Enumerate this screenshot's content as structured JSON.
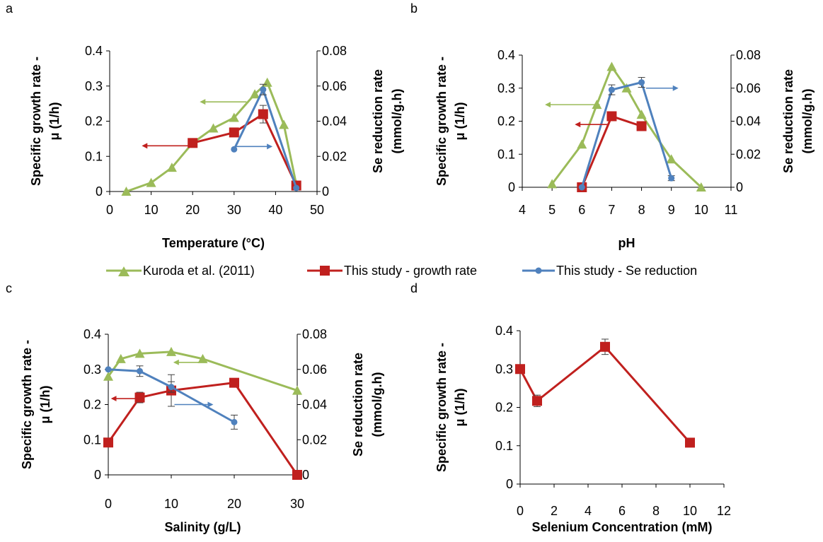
{
  "colors": {
    "kuroda": "#9BBB59",
    "growth": "#C0201E",
    "se": "#4F81BD",
    "axis": "#000000",
    "errorbar": "#404040"
  },
  "legend": {
    "items": [
      {
        "label": "Kuroda et al. (2011)",
        "color": "#9BBB59",
        "marker": "triangle"
      },
      {
        "label": "This study - growth rate",
        "color": "#C0201E",
        "marker": "square"
      },
      {
        "label": "This study - Se reduction",
        "color": "#4F81BD",
        "marker": "circle"
      }
    ]
  },
  "chart_data": [
    {
      "panel": "a",
      "type": "line",
      "xlabel": "Temperature (°C)",
      "ylabel_left": [
        "Specific growth rate -",
        "μ (1/h)"
      ],
      "ylabel_right": [
        "Se reduction rate",
        "(mmol/g.h)"
      ],
      "xlim": [
        0,
        50
      ],
      "xticks": [
        0,
        10,
        20,
        30,
        40,
        50
      ],
      "ylim_left": [
        0,
        0.4
      ],
      "yticks_left": [
        "0",
        "0.1",
        "0.2",
        "0.3",
        "0.4"
      ],
      "ylim_right": [
        0,
        0.08
      ],
      "yticks_right": [
        "0",
        "0.02",
        "0.04",
        "0.06",
        "0.08"
      ],
      "series": [
        {
          "name": "Kuroda et al. (2011)",
          "axis": "left",
          "marker": "triangle",
          "x": [
            4,
            10,
            15,
            20,
            25,
            30,
            35,
            38,
            42,
            45
          ],
          "y": [
            0,
            0.025,
            0.068,
            0.138,
            0.18,
            0.21,
            0.277,
            0.31,
            0.19,
            0.02
          ]
        },
        {
          "name": "This study - growth rate",
          "axis": "left",
          "marker": "square",
          "x": [
            20,
            30,
            37,
            45
          ],
          "y": [
            0.138,
            0.168,
            0.22,
            0.017
          ],
          "err": [
            0,
            0,
            0.025,
            0
          ]
        },
        {
          "name": "This study - Se reduction",
          "axis": "right",
          "marker": "circle",
          "x": [
            30,
            37,
            45
          ],
          "y": [
            0.024,
            0.058,
            0.002
          ],
          "err": [
            0,
            0.003,
            0
          ]
        }
      ],
      "arrows": [
        {
          "color": "#C0201E",
          "axis": "left",
          "from": [
            19.5,
            0.13
          ],
          "to": [
            8,
            0.13
          ]
        },
        {
          "color": "#9BBB59",
          "axis": "left",
          "from": [
            33,
            0.255
          ],
          "to": [
            22,
            0.255
          ]
        },
        {
          "color": "#4F81BD",
          "axis": "left",
          "from": [
            30.5,
            0.128
          ],
          "to": [
            39,
            0.128
          ]
        }
      ]
    },
    {
      "panel": "b",
      "type": "line",
      "xlabel": "pH",
      "ylabel_left": [
        "Specific growth rate -",
        "μ (1/h)"
      ],
      "ylabel_right": [
        "Se reduction rate",
        "(mmol/g.h)"
      ],
      "xlim": [
        4,
        11
      ],
      "xticks": [
        4,
        5,
        6,
        7,
        8,
        9,
        10,
        11
      ],
      "ylim_left": [
        0,
        0.4
      ],
      "yticks_left": [
        "0",
        "0.1",
        "0.2",
        "0.3",
        "0.4"
      ],
      "ylim_right": [
        0,
        0.08
      ],
      "yticks_right": [
        "0",
        "0.02",
        "0.04",
        "0.06",
        "0.08"
      ],
      "series": [
        {
          "name": "Kuroda et al. (2011)",
          "axis": "left",
          "marker": "triangle",
          "x": [
            5,
            6,
            6.5,
            7,
            7.5,
            8,
            9,
            10
          ],
          "y": [
            0.01,
            0.13,
            0.25,
            0.365,
            0.3,
            0.22,
            0.085,
            0
          ]
        },
        {
          "name": "This study - growth rate",
          "axis": "left",
          "marker": "square",
          "x": [
            6,
            7,
            8
          ],
          "y": [
            0,
            0.215,
            0.185
          ],
          "err": [
            0,
            0.01,
            0
          ]
        },
        {
          "name": "This study - Se reduction",
          "axis": "right",
          "marker": "circle",
          "x": [
            6,
            7,
            8,
            9
          ],
          "y": [
            0,
            0.059,
            0.0635,
            0.0055
          ],
          "err": [
            0,
            0.003,
            0.003,
            0.0015
          ]
        }
      ],
      "arrows": [
        {
          "color": "#9BBB59",
          "axis": "left",
          "from": [
            6.6,
            0.25
          ],
          "to": [
            4.8,
            0.25
          ]
        },
        {
          "color": "#C0201E",
          "axis": "left",
          "from": [
            6.9,
            0.19
          ],
          "to": [
            5.8,
            0.19
          ]
        },
        {
          "color": "#4F81BD",
          "axis": "left",
          "from": [
            8.15,
            0.3
          ],
          "to": [
            9.2,
            0.3
          ]
        }
      ]
    },
    {
      "panel": "c",
      "type": "line",
      "xlabel": "Salinity (g/L)",
      "ylabel_left": [
        "Specific growth rate -",
        "μ (1/h)"
      ],
      "ylabel_right": [
        "Se reduction rate",
        "(mmol/g.h)"
      ],
      "xlim": [
        0,
        30
      ],
      "xticks": [
        0,
        10,
        20,
        30
      ],
      "ylim_left": [
        0,
        0.4
      ],
      "yticks_left": [
        "0",
        "0.1",
        "0.2",
        "0.3",
        "0.4"
      ],
      "ylim_right": [
        0,
        0.08
      ],
      "yticks_right": [
        "0",
        "0.02",
        "0.04",
        "0.06",
        "0.08"
      ],
      "series": [
        {
          "name": "Kuroda et al. (2011)",
          "axis": "left",
          "marker": "triangle",
          "x": [
            0,
            2,
            5,
            10,
            15,
            30
          ],
          "y": [
            0.28,
            0.33,
            0.345,
            0.35,
            0.33,
            0.24
          ]
        },
        {
          "name": "This study - growth rate",
          "axis": "left",
          "marker": "square",
          "x": [
            0,
            5,
            10,
            20,
            30
          ],
          "y": [
            0.092,
            0.22,
            0.24,
            0.262,
            0
          ],
          "err": [
            0,
            0.015,
            0.045,
            0,
            0
          ]
        },
        {
          "name": "This study - Se reduction",
          "axis": "right",
          "marker": "circle",
          "x": [
            0,
            5,
            10,
            20
          ],
          "y": [
            0.06,
            0.059,
            0.05,
            0.03
          ],
          "err": [
            0,
            0.003,
            0.003,
            0.004
          ]
        }
      ],
      "arrows": [
        {
          "color": "#9BBB59",
          "axis": "left",
          "from": [
            14.5,
            0.32
          ],
          "to": [
            10.5,
            0.32
          ]
        },
        {
          "color": "#C0201E",
          "axis": "left",
          "from": [
            5,
            0.217
          ],
          "to": [
            0.6,
            0.217
          ]
        },
        {
          "color": "#4F81BD",
          "axis": "left",
          "from": [
            10.5,
            0.2
          ],
          "to": [
            16.5,
            0.2
          ]
        }
      ]
    },
    {
      "panel": "d",
      "type": "line",
      "xlabel": "Selenium Concentration (mM)",
      "ylabel_left": [
        "Specific growth rate -",
        "μ (1/h)"
      ],
      "xlim": [
        0,
        12
      ],
      "xticks": [
        0,
        2,
        4,
        6,
        8,
        10,
        12
      ],
      "ylim_left": [
        0,
        0.4
      ],
      "yticks_left": [
        "0",
        "0.1",
        "0.2",
        "0.3",
        "0.4"
      ],
      "series": [
        {
          "name": "This study - growth rate",
          "axis": "left",
          "marker": "square",
          "x": [
            0,
            1,
            5,
            10
          ],
          "y": [
            0.3,
            0.217,
            0.358,
            0.108
          ],
          "err": [
            0,
            0.015,
            0.02,
            0
          ]
        }
      ],
      "arrows": []
    }
  ]
}
